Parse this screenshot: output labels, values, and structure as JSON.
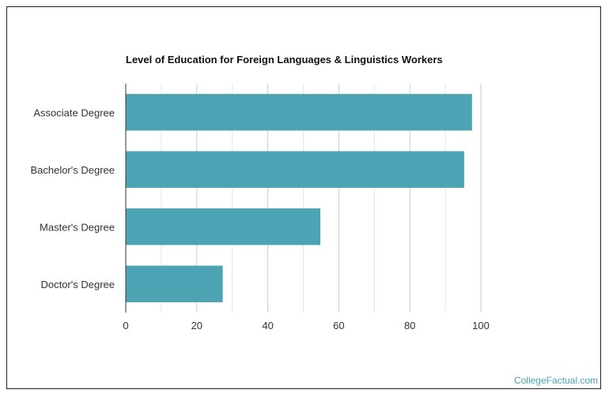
{
  "chart_data": {
    "type": "bar",
    "orientation": "horizontal",
    "title": "Level of Education for Foreign Languages & Linguistics Workers",
    "categories": [
      "Associate Degree",
      "Bachelor's Degree",
      "Master's Degree",
      "Doctor's Degree"
    ],
    "values": [
      97.5,
      95.3,
      54.8,
      27.3
    ],
    "xlim": [
      0,
      100
    ],
    "xticks": [
      "0",
      "20",
      "40",
      "60",
      "80",
      "100"
    ],
    "grid": true,
    "bar_color": "#4ba3b4"
  },
  "watermark": {
    "text": "CollegeFactual.com",
    "color": "#4ba3b4"
  }
}
